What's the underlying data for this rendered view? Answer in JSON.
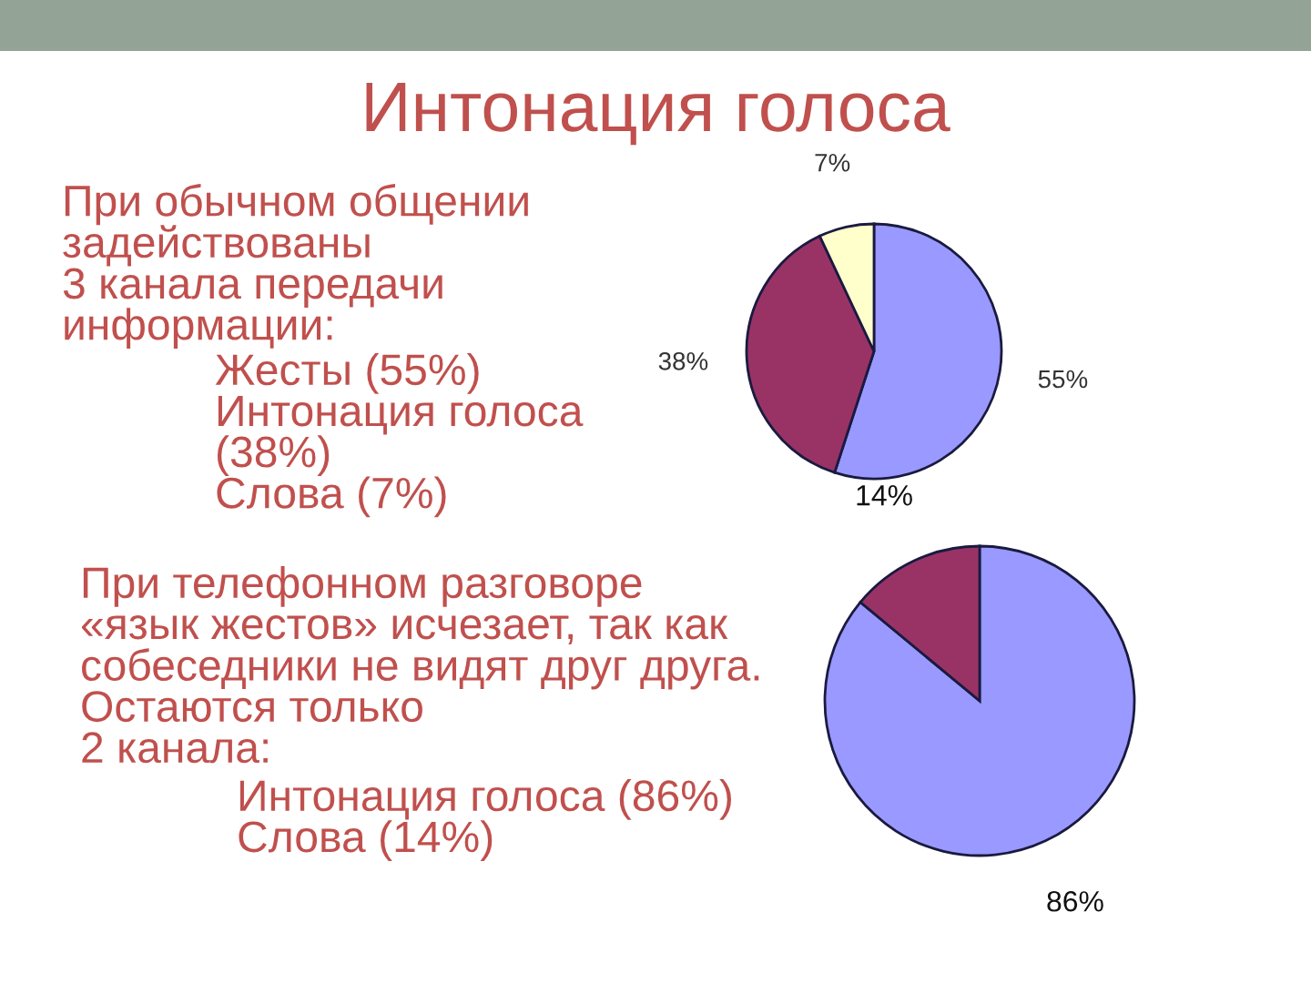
{
  "chart_data": [
    {
      "type": "pie",
      "title": "Интонация голоса",
      "categories": [
        null,
        null,
        null
      ],
      "values": [
        55,
        38,
        7
      ],
      "colors": [
        "#9999ff",
        "#993366",
        "#ffffcc"
      ],
      "value_labels": [
        "55%",
        "38%",
        "7%"
      ],
      "annotations": [
        "При обычном общении\nзадействованы\n3 канала передачи\nинформации:",
        "Жесты (55%)\nИнтонация голоса\n(38%)\nСлова (7%)"
      ]
    },
    {
      "type": "pie",
      "categories": [
        null,
        null
      ],
      "values": [
        86,
        14
      ],
      "colors": [
        "#9999ff",
        "#993366"
      ],
      "value_labels": [
        "86%",
        "14%"
      ],
      "annotations": [
        "При телефонном разговоре\n«язык жестов» исчезает, так как\nсобеседники не видят друг друга.\nОстаются только\n2 канала:",
        "Интонация голоса (86%)\nСлова (14%)"
      ]
    }
  ]
}
